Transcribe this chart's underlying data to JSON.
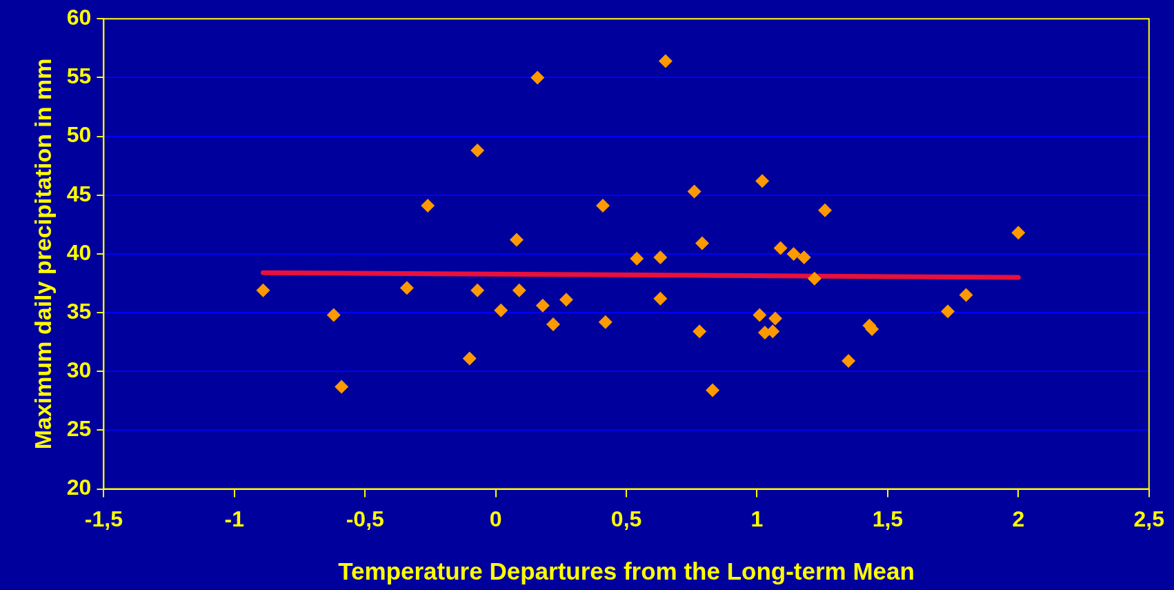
{
  "chart_data": {
    "type": "scatter",
    "xlabel": "Temperature Departures from the Long-term Mean",
    "ylabel": "Maximum daily precipitation in mm",
    "xlim": [
      -1.5,
      2.5
    ],
    "xticks": [
      {
        "value": -1.5,
        "label": "-1,5"
      },
      {
        "value": -1,
        "label": "-1"
      },
      {
        "value": -0.5,
        "label": "-0,5"
      },
      {
        "value": 0,
        "label": "0"
      },
      {
        "value": 0.5,
        "label": "0,5"
      },
      {
        "value": 1,
        "label": "1"
      },
      {
        "value": 1.5,
        "label": "1,5"
      },
      {
        "value": 2,
        "label": "2"
      },
      {
        "value": 2.5,
        "label": "2,5"
      }
    ],
    "ylim": [
      20,
      60
    ],
    "yticks": [
      20,
      25,
      30,
      35,
      40,
      45,
      50,
      55,
      60
    ],
    "grid": "y",
    "legend": false,
    "series": [
      {
        "color": "#ff9900",
        "marker": "diamond",
        "x": [
          -0.89,
          -0.62,
          -0.59,
          -0.34,
          -0.26,
          -0.1,
          -0.07,
          -0.07,
          0.02,
          0.08,
          0.09,
          0.16,
          0.18,
          0.22,
          0.27,
          0.41,
          0.42,
          0.54,
          0.63,
          0.63,
          0.65,
          0.76,
          0.78,
          0.79,
          0.83,
          1.01,
          1.02,
          1.03,
          1.06,
          1.07,
          1.09,
          1.14,
          1.18,
          1.22,
          1.26,
          1.35,
          1.43,
          1.44,
          1.73,
          1.8,
          2.0
        ],
        "values": [
          36.9,
          34.8,
          28.7,
          37.1,
          44.1,
          31.1,
          48.8,
          36.9,
          35.2,
          41.2,
          36.9,
          55.0,
          35.6,
          34.0,
          36.1,
          44.1,
          34.2,
          39.6,
          39.7,
          36.2,
          56.4,
          45.3,
          33.4,
          40.9,
          28.4,
          34.8,
          46.2,
          33.3,
          33.4,
          34.5,
          40.5,
          40.0,
          39.7,
          37.9,
          43.7,
          30.9,
          33.9,
          33.6,
          35.1,
          36.5,
          41.8
        ]
      },
      {
        "type": "line",
        "color": "#e8103c",
        "marker": "none",
        "line_style": "solid",
        "x": [
          -0.89,
          2.0
        ],
        "values": [
          38.4,
          38.0
        ]
      }
    ]
  }
}
